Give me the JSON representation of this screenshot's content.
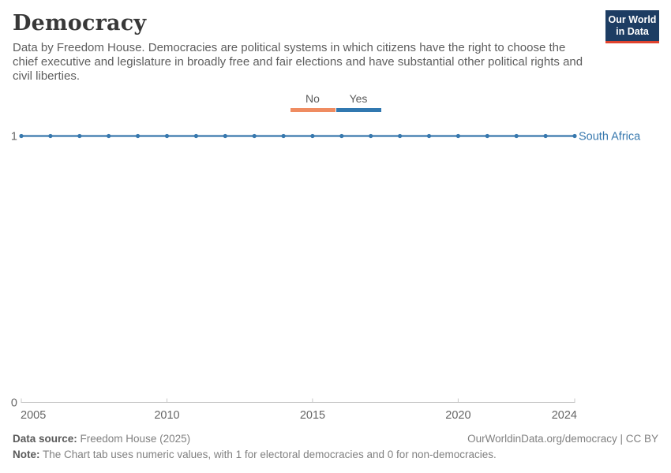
{
  "header": {
    "title": "Democracy",
    "subtitle": "Data by Freedom House. Democracies are political systems in which citizens have the right to choose the chief executive and legislature in broadly free and fair elections and have substantial other political rights and civil liberties.",
    "logo": {
      "line1": "Our World",
      "line2": "in Data",
      "bg_color": "#1d3d63",
      "accent_color": "#e0432e"
    }
  },
  "legend": {
    "items": [
      {
        "label": "No",
        "color": "#ef8c61"
      },
      {
        "label": "Yes",
        "color": "#3178b0"
      }
    ]
  },
  "chart_data": {
    "type": "line",
    "title": "Democracy",
    "entity_label": "South Africa",
    "x": [
      2005,
      2006,
      2007,
      2008,
      2009,
      2010,
      2011,
      2012,
      2013,
      2014,
      2015,
      2016,
      2017,
      2018,
      2019,
      2020,
      2021,
      2022,
      2023,
      2024
    ],
    "series": [
      {
        "name": "South Africa",
        "values": [
          1,
          1,
          1,
          1,
          1,
          1,
          1,
          1,
          1,
          1,
          1,
          1,
          1,
          1,
          1,
          1,
          1,
          1,
          1,
          1
        ],
        "color": "#4c84b4",
        "marker_color": "#3778ae",
        "label_color": "#3778ae"
      }
    ],
    "xlabel": "",
    "ylabel": "",
    "ylim": [
      0,
      1
    ],
    "yticks": [
      1,
      0
    ],
    "xticks": [
      2005,
      2010,
      2015,
      2020,
      2024
    ],
    "grid": false,
    "legend_position": "top-center",
    "axis_color": "#c8c8c8",
    "tick_label_color": "#666666"
  },
  "footer": {
    "source_label": "Data source:",
    "source_value": " Freedom House (2025)",
    "citation": "OurWorldinData.org/democracy | CC BY",
    "note_label": "Note:",
    "note_value": " The Chart tab uses numeric values, with 1 for electoral democracies and 0 for non-democracies."
  }
}
